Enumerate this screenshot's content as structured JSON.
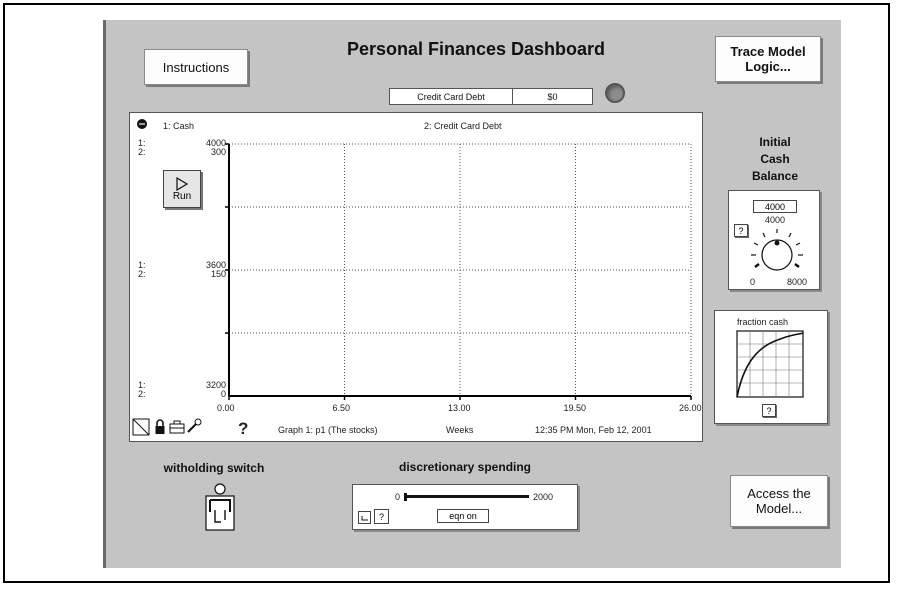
{
  "header": {
    "title": "Personal Finances Dashboard",
    "instructions_label": "Instructions",
    "trace_label_line1": "Trace Model",
    "trace_label_line2": "Logic..."
  },
  "readout": {
    "label": "Credit Card Debt",
    "value": "$0"
  },
  "graph": {
    "series1_label": "1: Cash",
    "series2_label": "2: Credit Card Debt",
    "run_label": "Run",
    "y_row_labels": [
      "1:",
      "2:"
    ],
    "y_ticks_series1": [
      "4000",
      "3600",
      "3200"
    ],
    "y_ticks_series2": [
      "300",
      "150",
      "0"
    ],
    "x_ticks": [
      "0.00",
      "6.50",
      "13.00",
      "19.50",
      "26.00"
    ],
    "footer_graph": "Graph 1: p1 (The stocks)",
    "footer_units": "Weeks",
    "footer_time": "12:35 PM  Mon, Feb 12, 2001",
    "help_symbol": "?"
  },
  "chart_data": {
    "type": "line",
    "title": "",
    "xlabel": "Weeks",
    "x_ticks": [
      0,
      6.5,
      13,
      19.5,
      26
    ],
    "xlim": [
      0,
      26
    ],
    "series": [
      {
        "name": "1: Cash",
        "ylim": [
          3200,
          4000
        ],
        "y_ticks": [
          4000,
          3600,
          3200
        ],
        "values": []
      },
      {
        "name": "2: Credit Card Debt",
        "ylim": [
          0,
          300
        ],
        "y_ticks": [
          300,
          150,
          0
        ],
        "values": []
      }
    ],
    "grid": true
  },
  "initial_cash": {
    "label_line1": "Initial",
    "label_line2": "Cash",
    "label_line3": "Balance",
    "value": "4000",
    "display": "4000",
    "min_label": "0",
    "max_label": "8000",
    "help_symbol": "?"
  },
  "fraction_cash": {
    "label": "fraction cash",
    "help_symbol": "?"
  },
  "withholding": {
    "label": "witholding switch"
  },
  "spending": {
    "label": "discretionary spending",
    "min_label": "0",
    "max_label": "2000",
    "help_symbol": "?",
    "eqn_label": "eqn on"
  },
  "access": {
    "label_line1": "Access the",
    "label_line2": "Model..."
  }
}
